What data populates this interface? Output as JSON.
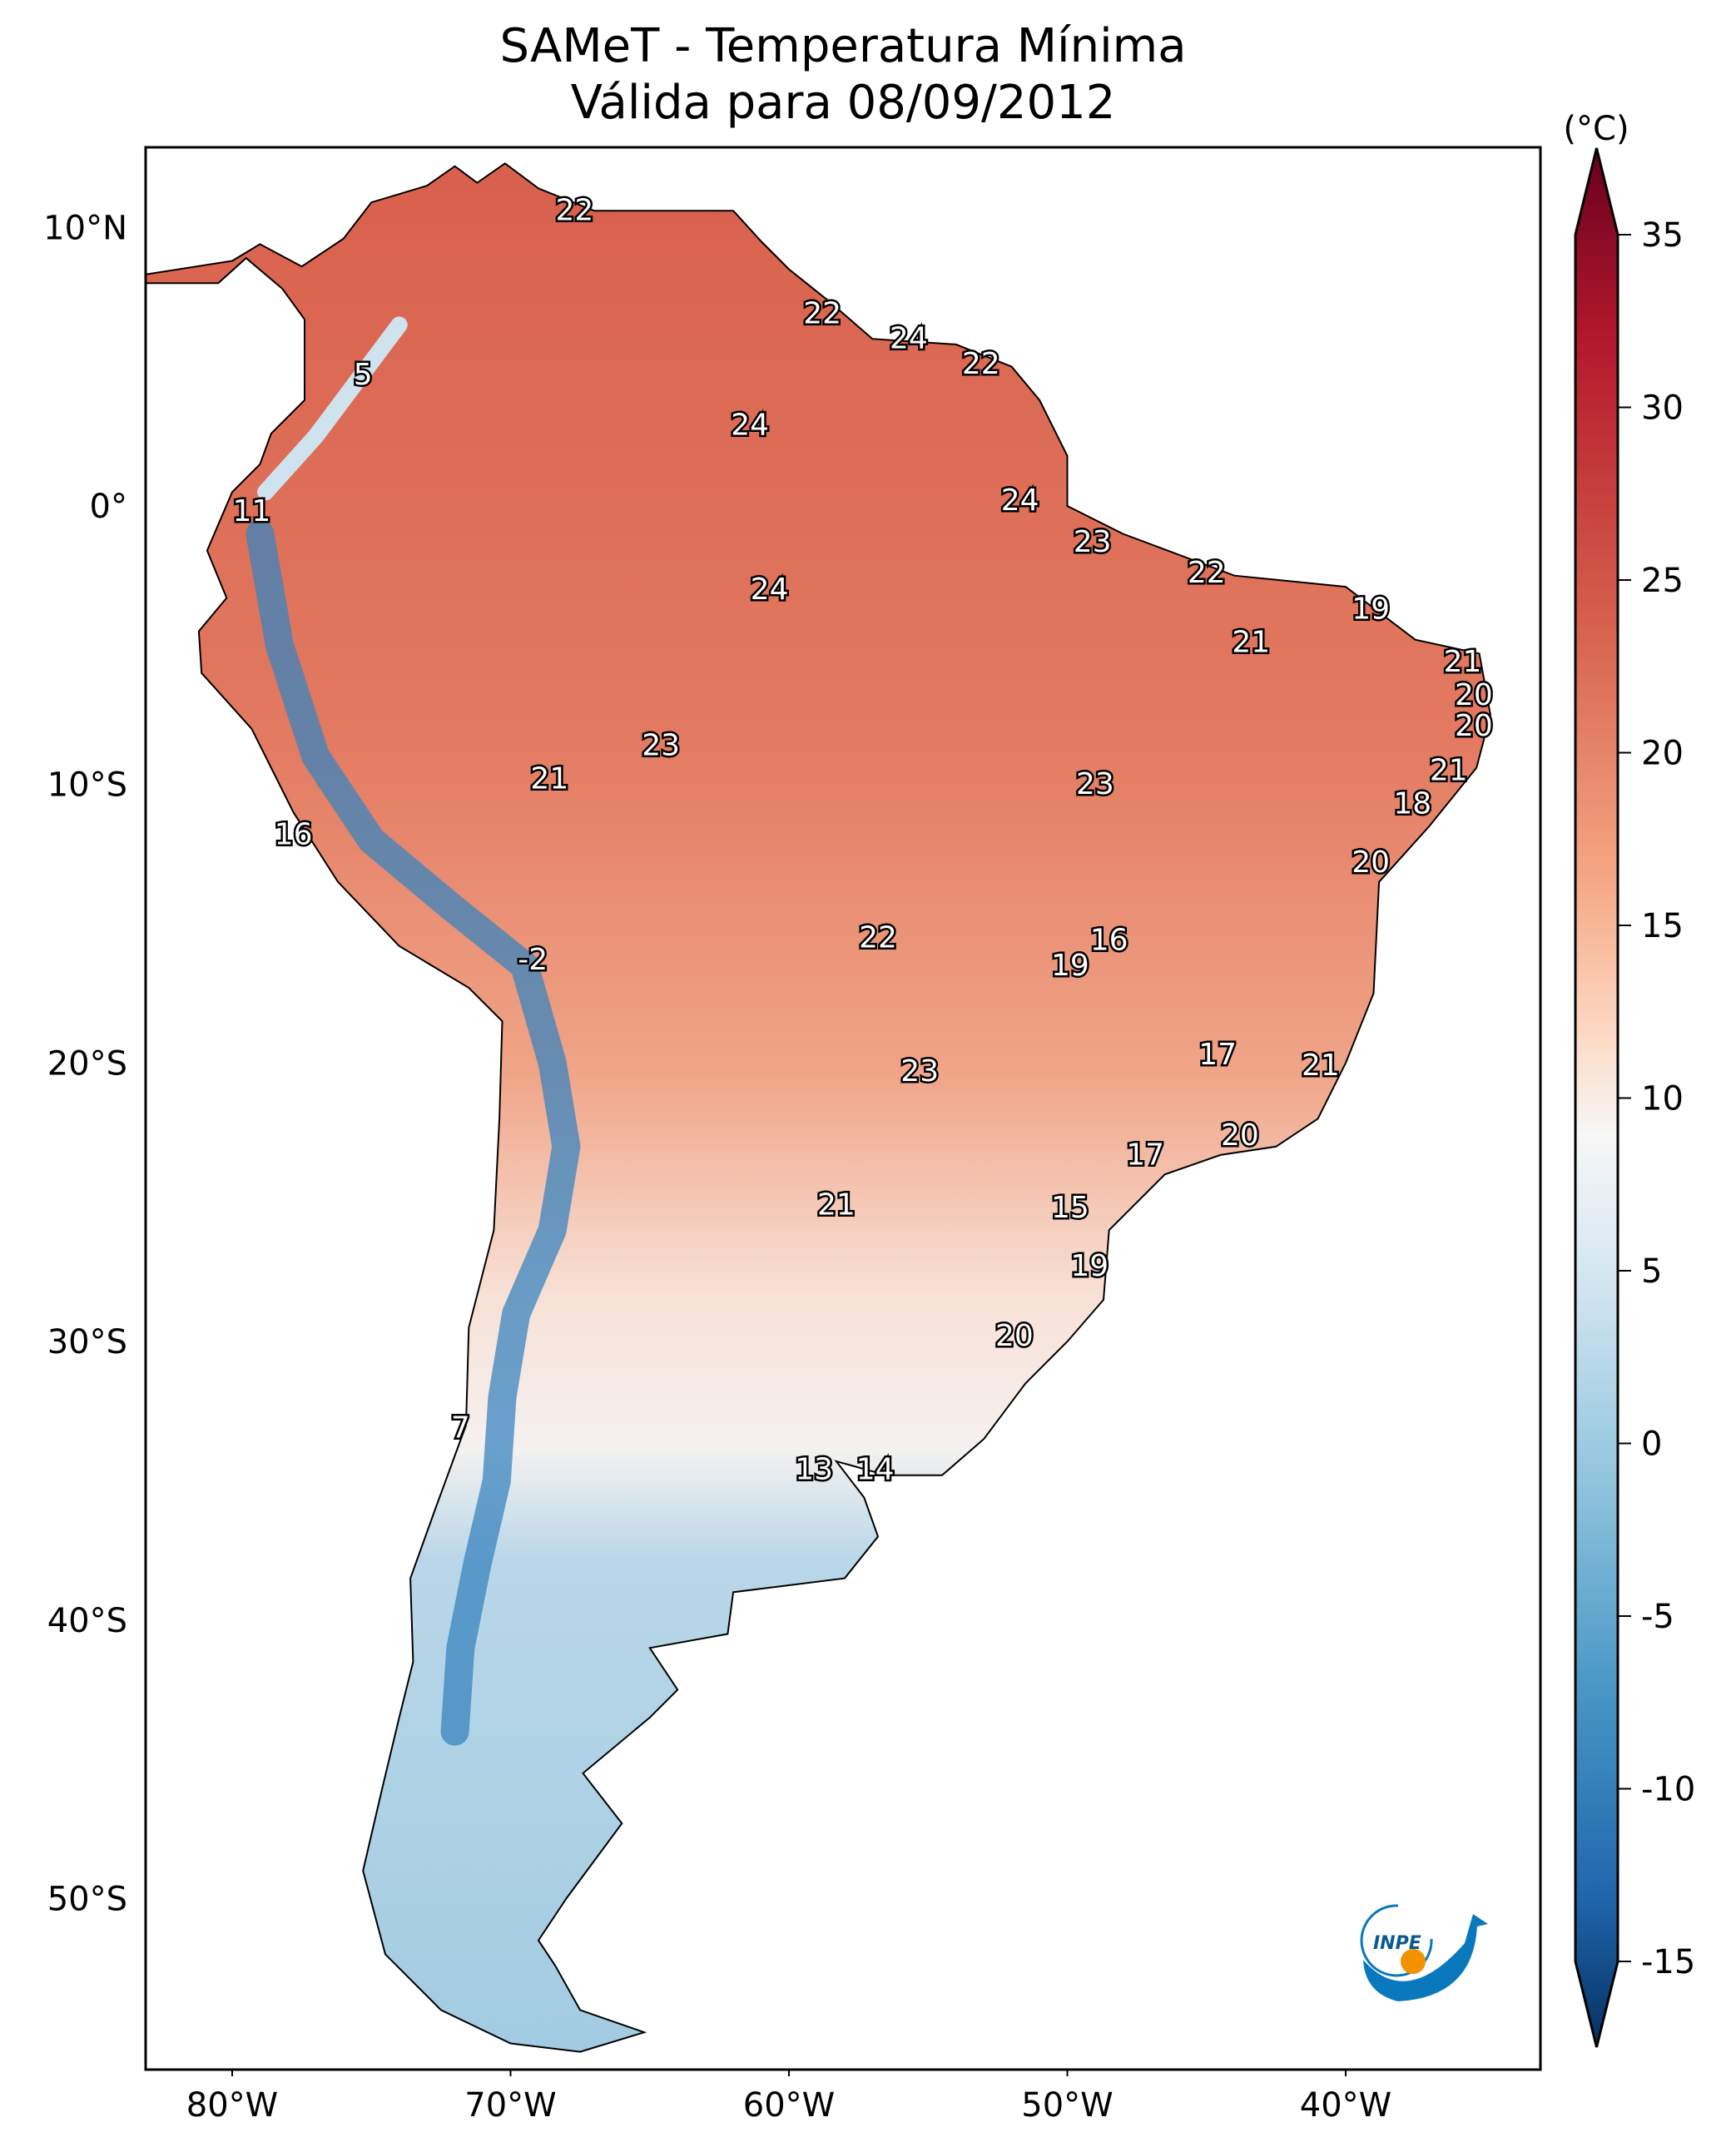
{
  "title": {
    "line1": "SAMeT - Temperatura Mínima",
    "line2": "Válida para 08/09/2012"
  },
  "map": {
    "projection": "PlateCarree",
    "lon_ticks": [
      {
        "value": -80,
        "label": "80°W"
      },
      {
        "value": -70,
        "label": "70°W"
      },
      {
        "value": -60,
        "label": "60°W"
      },
      {
        "value": -50,
        "label": "50°W"
      },
      {
        "value": -40,
        "label": "40°W"
      }
    ],
    "lat_ticks": [
      {
        "value": 10,
        "label": "10°N"
      },
      {
        "value": 0,
        "label": "0°"
      },
      {
        "value": -10,
        "label": "10°S"
      },
      {
        "value": -20,
        "label": "20°S"
      },
      {
        "value": -30,
        "label": "30°S"
      },
      {
        "value": -40,
        "label": "40°S"
      },
      {
        "value": -50,
        "label": "50°S"
      }
    ],
    "station_labels": [
      {
        "text": "22",
        "lon": -67.7,
        "lat": 10.6
      },
      {
        "text": "22",
        "lon": -58.8,
        "lat": 6.9
      },
      {
        "text": "24",
        "lon": -55.7,
        "lat": 6.0
      },
      {
        "text": "22",
        "lon": -53.1,
        "lat": 5.1
      },
      {
        "text": "5",
        "lon": -75.3,
        "lat": 4.7
      },
      {
        "text": "24",
        "lon": -61.4,
        "lat": 2.9
      },
      {
        "text": "11",
        "lon": -79.3,
        "lat": -0.2
      },
      {
        "text": "24",
        "lon": -51.7,
        "lat": 0.2
      },
      {
        "text": "23",
        "lon": -49.1,
        "lat": -1.3
      },
      {
        "text": "22",
        "lon": -45.0,
        "lat": -2.4
      },
      {
        "text": "24",
        "lon": -60.7,
        "lat": -3.0
      },
      {
        "text": "19",
        "lon": -39.1,
        "lat": -3.7
      },
      {
        "text": "21",
        "lon": -43.4,
        "lat": -4.9
      },
      {
        "text": "21",
        "lon": -35.8,
        "lat": -5.6
      },
      {
        "text": "20",
        "lon": -35.4,
        "lat": -6.8
      },
      {
        "text": "20",
        "lon": -35.4,
        "lat": -7.9
      },
      {
        "text": "23",
        "lon": -64.6,
        "lat": -8.6
      },
      {
        "text": "21",
        "lon": -68.6,
        "lat": -9.8
      },
      {
        "text": "23",
        "lon": -49.0,
        "lat": -10.0
      },
      {
        "text": "21",
        "lon": -36.3,
        "lat": -9.5
      },
      {
        "text": "18",
        "lon": -37.6,
        "lat": -10.7
      },
      {
        "text": "16",
        "lon": -77.8,
        "lat": -11.8
      },
      {
        "text": "20",
        "lon": -39.1,
        "lat": -12.8
      },
      {
        "text": "22",
        "lon": -56.8,
        "lat": -15.5
      },
      {
        "text": "16",
        "lon": -48.5,
        "lat": -15.6
      },
      {
        "text": "19",
        "lon": -49.9,
        "lat": -16.5
      },
      {
        "text": "-2",
        "lon": -69.2,
        "lat": -16.3
      },
      {
        "text": "17",
        "lon": -44.6,
        "lat": -19.7
      },
      {
        "text": "21",
        "lon": -40.9,
        "lat": -20.1
      },
      {
        "text": "23",
        "lon": -55.3,
        "lat": -20.3
      },
      {
        "text": "20",
        "lon": -43.8,
        "lat": -22.6
      },
      {
        "text": "17",
        "lon": -47.2,
        "lat": -23.3
      },
      {
        "text": "21",
        "lon": -58.3,
        "lat": -25.1
      },
      {
        "text": "15",
        "lon": -49.9,
        "lat": -25.2
      },
      {
        "text": "19",
        "lon": -49.2,
        "lat": -27.3
      },
      {
        "text": "20",
        "lon": -51.9,
        "lat": -29.8
      },
      {
        "text": "7",
        "lon": -71.8,
        "lat": -33.1
      },
      {
        "text": "13",
        "lon": -59.1,
        "lat": -34.6
      },
      {
        "text": "14",
        "lon": -56.9,
        "lat": -34.6
      }
    ]
  },
  "colorbar": {
    "unit": "(°C)",
    "colormap": "RdBu_r",
    "range": [
      -15,
      35
    ],
    "extend": "both",
    "ticks": [
      {
        "value": 35,
        "label": "35"
      },
      {
        "value": 30,
        "label": "30"
      },
      {
        "value": 25,
        "label": "25"
      },
      {
        "value": 20,
        "label": "20"
      },
      {
        "value": 15,
        "label": "15"
      },
      {
        "value": 10,
        "label": "10"
      },
      {
        "value": 5,
        "label": "5"
      },
      {
        "value": 0,
        "label": "0"
      },
      {
        "value": -5,
        "label": "-5"
      },
      {
        "value": -10,
        "label": "-10"
      },
      {
        "value": -15,
        "label": "-15"
      }
    ]
  },
  "logo": {
    "text": "INPE",
    "colors": {
      "blue": "#0a78bd",
      "orange": "#f39200"
    }
  }
}
